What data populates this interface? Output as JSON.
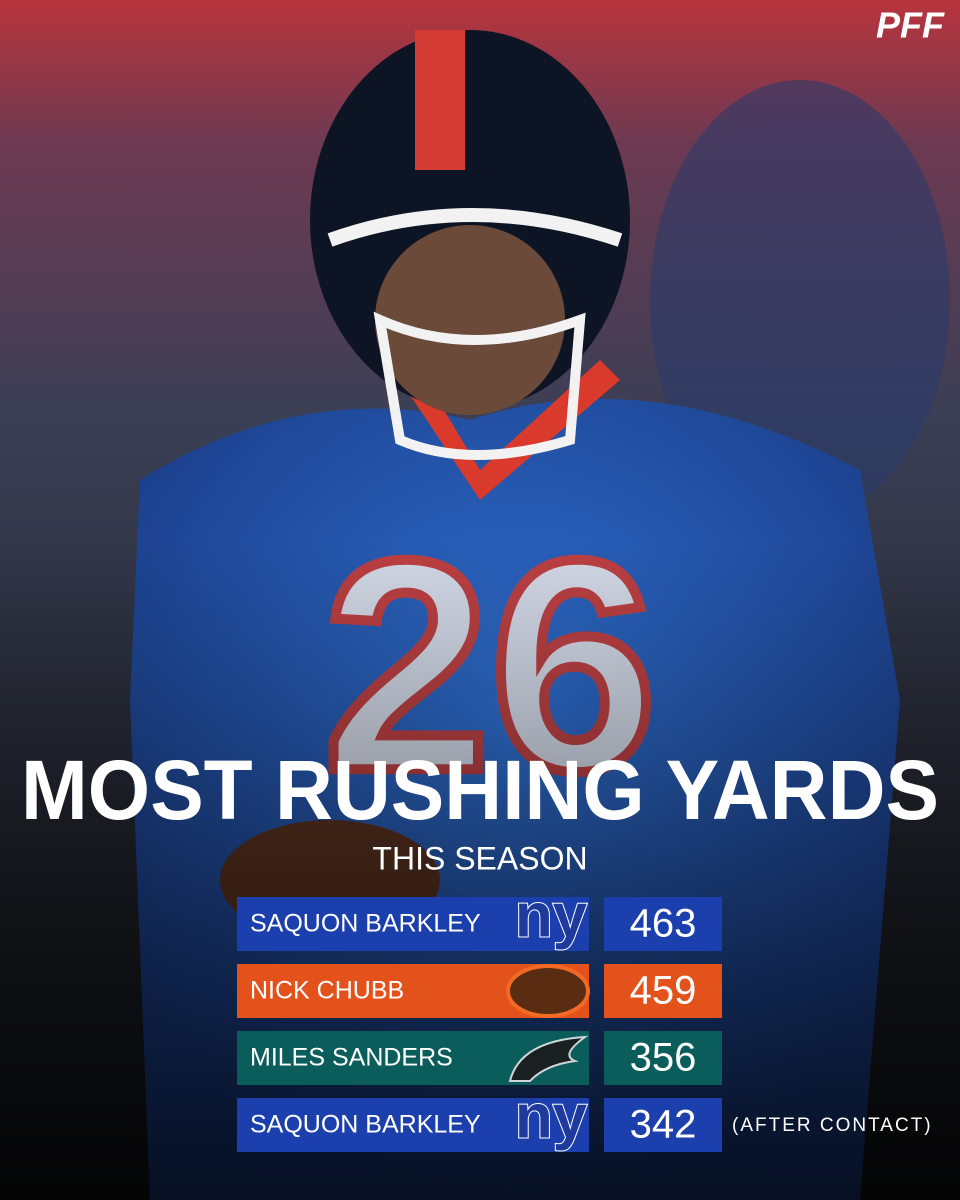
{
  "brand": "PFF",
  "title": "MOST RUSHING YARDS",
  "subtitle": "THIS SEASON",
  "rows": [
    {
      "player": "SAQUON BARKLEY",
      "logo": "ny",
      "value": 463,
      "color": "#1c3fae"
    },
    {
      "player": "NICK CHUBB",
      "value": 459,
      "color": "#e4521b"
    },
    {
      "player": "MILES SANDERS",
      "value": 356,
      "color": "#0b5d5b"
    },
    {
      "player": "SAQUON BARKLEY",
      "logo": "ny",
      "value": 342,
      "color": "#1c3fae",
      "note": "(AFTER CONTACT)"
    }
  ]
}
